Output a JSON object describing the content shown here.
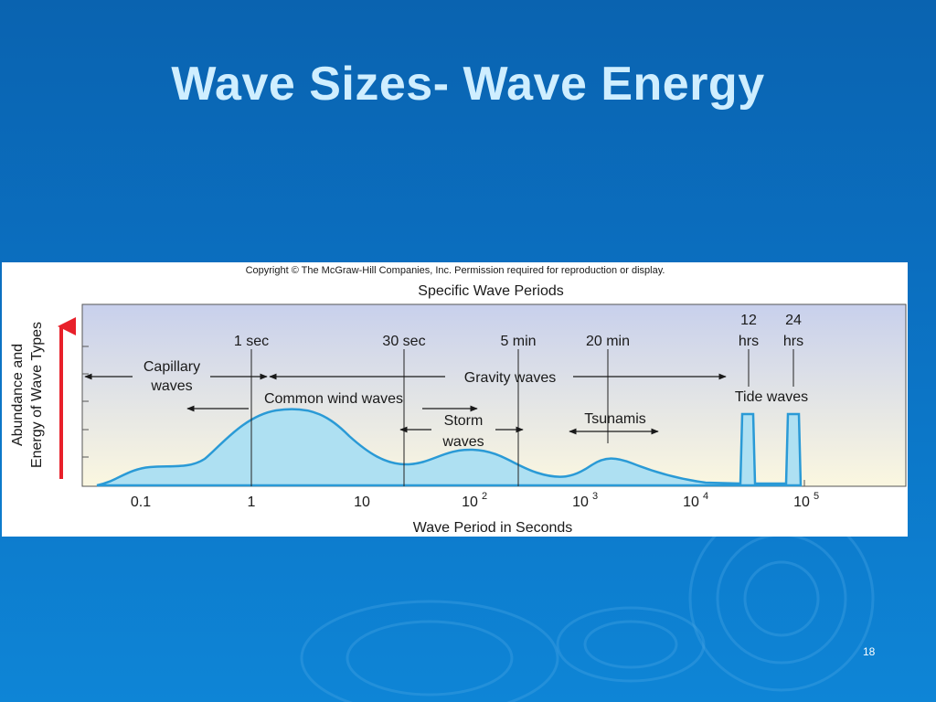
{
  "slide": {
    "title": "Wave Sizes- Wave Energy",
    "number": "18",
    "colors": {
      "background": "#0b6fc0",
      "title": "#cfeeff"
    }
  },
  "figure": {
    "copyright": "Copyright © The McGraw-Hill Companies, Inc. Permission required for reproduction or display.",
    "header": "Specific Wave Periods",
    "x_axis_label": "Wave Period in Seconds",
    "y_axis_label_line1": "Abundance and",
    "y_axis_label_line2": "Energy of Wave Types",
    "x_ticks": {
      "t0": "0.1",
      "t1": "1",
      "t2": "10",
      "t3_base": "10",
      "t3_exp": "2",
      "t4_base": "10",
      "t4_exp": "3",
      "t5_base": "10",
      "t5_exp": "4",
      "t6_base": "10",
      "t6_exp": "5"
    },
    "period_markers": {
      "m1": "1 sec",
      "m2": "30 sec",
      "m3": "5 min",
      "m4": "20 min",
      "m5_line1": "12",
      "m5_line2": "hrs",
      "m6_line1": "24",
      "m6_line2": "hrs"
    },
    "wave_types": {
      "capillary_line1": "Capillary",
      "capillary_line2": "waves",
      "gravity": "Gravity waves",
      "common_wind": "Common wind waves",
      "storm_line1": "Storm",
      "storm_line2": "waves",
      "tsunamis": "Tsunamis",
      "tide": "Tide waves"
    },
    "colors": {
      "curve_stroke": "#2a9ad6",
      "curve_fill": "#aee0f2",
      "arrow": "#e8202a",
      "panel_top": "#c8d0ec",
      "panel_bottom": "#fbf7e0"
    }
  }
}
